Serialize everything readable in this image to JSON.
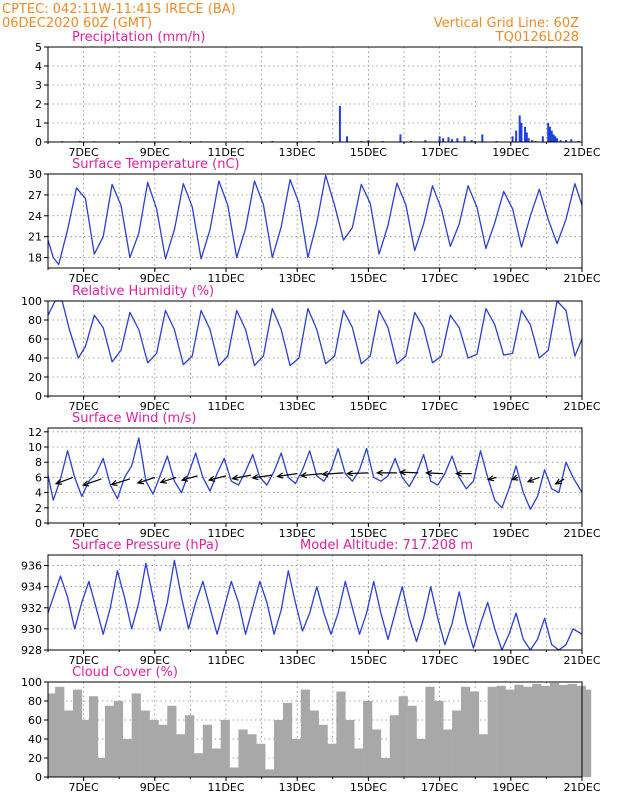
{
  "header": {
    "line1": "CPTEC:  042:11W-11:41S  IRECE (BA)",
    "line2": "06DEC2020 60Z (GMT)",
    "right1": "Vertical Grid Line: 60Z",
    "right2": "TQ0126L028"
  },
  "colors": {
    "line": "#2a3fd6",
    "bar": "#1f3fe0",
    "cloud": "#a8a8a8",
    "title": "#e020a0",
    "header": "#f08a24"
  },
  "x_axis": {
    "labels": [
      "7DEC",
      "9DEC",
      "11DEC",
      "13DEC",
      "15DEC",
      "17DEC",
      "19DEC",
      "21DEC"
    ],
    "x_range_days": [
      0,
      15
    ]
  },
  "chart_data": [
    {
      "id": "precip",
      "type": "bar",
      "title": "Precipitation (mm/h)",
      "ylim": [
        0,
        5
      ],
      "yticks": [
        0,
        1,
        2,
        3,
        4,
        5
      ],
      "x_days": [
        0.4,
        0.9,
        1.3,
        1.8,
        2.5,
        3.1,
        3.7,
        4.3,
        5.0,
        5.6,
        6.3,
        7.1,
        7.6,
        8.2,
        8.4,
        8.8,
        9.0,
        9.4,
        9.9,
        10.2,
        10.6,
        11.0,
        11.1,
        11.25,
        11.35,
        11.5,
        11.7,
        11.9,
        12.0,
        12.2,
        12.6,
        13.05,
        13.15,
        13.25,
        13.3,
        13.4,
        13.45,
        13.5,
        13.6,
        13.7,
        13.9,
        14.05,
        14.1,
        14.15,
        14.2,
        14.25,
        14.3,
        14.4,
        14.55,
        14.7,
        14.9
      ],
      "values": [
        0.05,
        0.05,
        0.04,
        0.03,
        0.04,
        0.03,
        0.05,
        0.04,
        0.03,
        0.04,
        0.05,
        0.04,
        0.05,
        1.9,
        0.3,
        0.05,
        0.1,
        0.05,
        0.4,
        0.05,
        0.1,
        0.3,
        0.2,
        0.25,
        0.15,
        0.2,
        0.3,
        0.1,
        0.05,
        0.4,
        0.05,
        0.3,
        0.6,
        1.4,
        1.0,
        0.8,
        0.5,
        0.2,
        0.1,
        0.05,
        0.3,
        1.0,
        0.8,
        0.6,
        0.4,
        0.3,
        0.2,
        0.1,
        0.1,
        0.15,
        0.05
      ]
    },
    {
      "id": "temp",
      "type": "line",
      "title": "Surface Temperature (nC)",
      "ylim": [
        16.5,
        30
      ],
      "yticks": [
        18,
        21,
        24,
        27,
        30
      ],
      "mean": 22.8,
      "amp": 5.6,
      "phase_offset": 0.28,
      "x": [
        0,
        0.15,
        0.3,
        0.55,
        0.8,
        1.05,
        1.3,
        1.55,
        1.8,
        2.05,
        2.3,
        2.55,
        2.8,
        3.05,
        3.3,
        3.55,
        3.8,
        4.05,
        4.3,
        4.55,
        4.8,
        5.05,
        5.3,
        5.55,
        5.8,
        6.05,
        6.3,
        6.55,
        6.8,
        7.05,
        7.3,
        7.55,
        7.8,
        8.05,
        8.3,
        8.55,
        8.8,
        9.05,
        9.3,
        9.55,
        9.8,
        10.05,
        10.3,
        10.55,
        10.8,
        11.05,
        11.3,
        11.55,
        11.8,
        12.05,
        12.3,
        12.55,
        12.8,
        13.05,
        13.3,
        13.55,
        13.8,
        14.05,
        14.3,
        14.55,
        14.8,
        15
      ],
      "values": [
        20.5,
        18.0,
        17.0,
        22.0,
        28.0,
        26.5,
        18.5,
        21.0,
        28.5,
        25.5,
        18.0,
        21.5,
        28.8,
        25.0,
        17.8,
        22.0,
        28.6,
        25.3,
        17.8,
        22.0,
        29.0,
        25.5,
        18.0,
        22.2,
        29.0,
        25.6,
        18.0,
        22.4,
        29.2,
        25.8,
        18.0,
        23.0,
        29.8,
        25.5,
        20.5,
        22.3,
        28.5,
        25.8,
        18.5,
        22.6,
        28.7,
        25.6,
        19.0,
        22.8,
        28.3,
        25.0,
        19.6,
        22.8,
        28.3,
        25.2,
        19.3,
        23.0,
        27.5,
        25.0,
        19.5,
        24.0,
        27.8,
        23.5,
        20.0,
        23.5,
        28.6,
        25.5
      ]
    },
    {
      "id": "rh",
      "type": "line",
      "title": "Relative Humidity (%)",
      "ylim": [
        0,
        100
      ],
      "yticks": [
        0,
        20,
        40,
        60,
        80,
        100
      ],
      "x": [
        0,
        0.2,
        0.4,
        0.6,
        0.85,
        1.05,
        1.3,
        1.55,
        1.8,
        2.05,
        2.3,
        2.55,
        2.8,
        3.05,
        3.3,
        3.55,
        3.8,
        4.05,
        4.3,
        4.55,
        4.8,
        5.05,
        5.3,
        5.55,
        5.8,
        6.05,
        6.3,
        6.55,
        6.8,
        7.05,
        7.3,
        7.55,
        7.8,
        8.05,
        8.3,
        8.55,
        8.8,
        9.05,
        9.3,
        9.55,
        9.8,
        10.05,
        10.3,
        10.55,
        10.8,
        11.05,
        11.3,
        11.55,
        11.8,
        12.05,
        12.3,
        12.55,
        12.8,
        13.05,
        13.3,
        13.55,
        13.8,
        14.05,
        14.3,
        14.55,
        14.8,
        15
      ],
      "values": [
        85,
        100,
        100,
        70,
        40,
        52,
        85,
        72,
        36,
        48,
        88,
        70,
        35,
        45,
        90,
        70,
        33,
        42,
        90,
        70,
        32,
        42,
        90,
        70,
        32,
        42,
        92,
        70,
        32,
        40,
        92,
        70,
        34,
        42,
        90,
        72,
        34,
        42,
        90,
        72,
        34,
        42,
        88,
        72,
        35,
        42,
        85,
        72,
        40,
        44,
        92,
        75,
        43,
        45,
        90,
        75,
        40,
        48,
        100,
        90,
        42,
        60
      ]
    },
    {
      "id": "wind",
      "type": "line",
      "title": "Surface Wind (m/s)",
      "ylim": [
        0,
        12.5
      ],
      "yticks": [
        0,
        2,
        4,
        6,
        8,
        10,
        12
      ],
      "x": [
        0,
        0.15,
        0.35,
        0.55,
        0.75,
        0.95,
        1.15,
        1.35,
        1.55,
        1.75,
        1.95,
        2.15,
        2.35,
        2.55,
        2.75,
        2.95,
        3.15,
        3.35,
        3.55,
        3.75,
        3.95,
        4.15,
        4.35,
        4.55,
        4.75,
        4.95,
        5.15,
        5.35,
        5.55,
        5.75,
        5.95,
        6.15,
        6.35,
        6.55,
        6.75,
        6.95,
        7.15,
        7.35,
        7.55,
        7.75,
        7.95,
        8.15,
        8.35,
        8.55,
        8.75,
        8.95,
        9.15,
        9.35,
        9.55,
        9.75,
        9.95,
        10.15,
        10.35,
        10.55,
        10.75,
        10.95,
        11.15,
        11.35,
        11.55,
        11.75,
        11.95,
        12.15,
        12.35,
        12.55,
        12.75,
        12.95,
        13.15,
        13.35,
        13.55,
        13.75,
        13.95,
        14.15,
        14.35,
        14.55,
        14.75,
        15
      ],
      "values": [
        6.3,
        3.0,
        5.8,
        9.5,
        6.0,
        3.5,
        5.5,
        6.5,
        8.5,
        5.0,
        3.2,
        6.0,
        7.5,
        11.2,
        5.5,
        3.8,
        6.2,
        8.8,
        5.5,
        4.0,
        6.5,
        9.2,
        6.0,
        4.2,
        6.5,
        8.5,
        5.5,
        5.0,
        6.8,
        9.0,
        6.0,
        5.0,
        6.8,
        9.2,
        6.0,
        5.2,
        7.0,
        9.5,
        6.2,
        5.5,
        7.0,
        9.8,
        6.5,
        5.5,
        7.0,
        9.8,
        6.0,
        5.5,
        6.2,
        8.5,
        6.0,
        4.8,
        6.5,
        9.0,
        5.5,
        5.0,
        6.5,
        8.8,
        6.0,
        4.5,
        5.5,
        9.5,
        6.0,
        3.0,
        2.0,
        4.5,
        7.5,
        4.0,
        1.8,
        3.5,
        7.0,
        4.5,
        4.0,
        8.0,
        6.0,
        4.0
      ],
      "arrows": {
        "x": [
          0.7,
          1.5,
          2.3,
          3.0,
          3.6,
          4.2,
          5.0,
          5.7,
          6.3,
          7.0,
          7.7,
          8.3,
          9.0,
          9.8,
          10.4,
          11.1,
          11.9,
          12.6,
          13.2,
          13.8,
          14.5
        ],
        "y": [
          6.0,
          5.8,
          5.8,
          6.0,
          6.0,
          6.2,
          6.2,
          6.3,
          6.3,
          6.5,
          6.5,
          6.6,
          6.6,
          6.6,
          6.6,
          6.5,
          6.5,
          6.0,
          6.0,
          6.0,
          5.8
        ],
        "dx": [
          -1.2,
          -1.3,
          -1.3,
          -1.2,
          -1.1,
          -1.1,
          -1.2,
          -1.3,
          -1.4,
          -1.4,
          -1.5,
          -1.5,
          -1.5,
          -1.4,
          -1.3,
          -1.2,
          -1.1,
          -0.6,
          -0.4,
          -0.8,
          -0.6
        ],
        "dy": [
          -0.45,
          -0.45,
          -0.4,
          -0.4,
          -0.35,
          -0.3,
          -0.3,
          -0.25,
          -0.2,
          -0.2,
          -0.15,
          -0.1,
          -0.05,
          0.0,
          0.05,
          0.05,
          0.0,
          -0.15,
          -0.15,
          -0.3,
          -0.35
        ]
      }
    },
    {
      "id": "pressure",
      "type": "line",
      "title": "Surface Pressure (hPa)",
      "subtitle": "Model Altitude: 717.208 m",
      "ylim": [
        928,
        937
      ],
      "yticks": [
        928,
        930,
        932,
        934,
        936
      ],
      "x": [
        0,
        0.15,
        0.35,
        0.55,
        0.75,
        0.95,
        1.15,
        1.35,
        1.55,
        1.75,
        1.95,
        2.15,
        2.35,
        2.55,
        2.75,
        2.95,
        3.15,
        3.35,
        3.55,
        3.75,
        3.95,
        4.15,
        4.35,
        4.55,
        4.75,
        4.95,
        5.15,
        5.35,
        5.55,
        5.75,
        5.95,
        6.15,
        6.35,
        6.55,
        6.75,
        6.95,
        7.15,
        7.35,
        7.55,
        7.75,
        7.95,
        8.15,
        8.35,
        8.55,
        8.75,
        8.95,
        9.15,
        9.35,
        9.55,
        9.75,
        9.95,
        10.15,
        10.35,
        10.55,
        10.75,
        10.95,
        11.15,
        11.35,
        11.55,
        11.75,
        11.95,
        12.15,
        12.35,
        12.55,
        12.75,
        12.95,
        13.15,
        13.35,
        13.55,
        13.75,
        13.95,
        14.15,
        14.35,
        14.55,
        14.75,
        15
      ],
      "values": [
        931.5,
        933.0,
        935.0,
        933.0,
        930.0,
        932.5,
        934.5,
        932.0,
        929.5,
        932.0,
        935.5,
        933.0,
        930.0,
        932.5,
        936.2,
        933.0,
        929.8,
        932.5,
        936.5,
        933.0,
        930.0,
        932.5,
        934.5,
        932.0,
        929.5,
        932.0,
        934.5,
        932.5,
        929.5,
        932.0,
        934.5,
        932.5,
        929.5,
        931.8,
        935.5,
        932.5,
        929.8,
        931.5,
        934.0,
        931.5,
        929.5,
        931.5,
        934.5,
        932.0,
        929.5,
        931.5,
        934.5,
        931.5,
        929.0,
        931.5,
        934.0,
        931.0,
        928.8,
        931.0,
        934.0,
        931.0,
        928.5,
        930.5,
        933.5,
        930.5,
        928.2,
        930.5,
        932.5,
        930.0,
        928.0,
        929.5,
        931.5,
        929.0,
        928.0,
        929.0,
        931.0,
        928.5,
        928.0,
        928.5,
        930.0,
        929.5
      ]
    },
    {
      "id": "cloud",
      "type": "bar",
      "title": "Cloud Cover (%)",
      "ylim": [
        0,
        100
      ],
      "yticks": [
        0,
        20,
        40,
        60,
        80,
        100
      ],
      "x": [
        0,
        0.2,
        0.45,
        0.7,
        0.95,
        1.15,
        1.4,
        1.6,
        1.85,
        2.1,
        2.35,
        2.6,
        2.85,
        3.1,
        3.35,
        3.6,
        3.85,
        4.1,
        4.35,
        4.6,
        4.85,
        5.1,
        5.35,
        5.6,
        5.85,
        6.1,
        6.35,
        6.6,
        6.85,
        7.1,
        7.35,
        7.6,
        7.85,
        8.1,
        8.35,
        8.6,
        8.85,
        9.1,
        9.35,
        9.6,
        9.85,
        10.1,
        10.35,
        10.6,
        10.85,
        11.1,
        11.35,
        11.6,
        11.85,
        12.1,
        12.35,
        12.6,
        12.85,
        13.1,
        13.35,
        13.6,
        13.85,
        14.1,
        14.35,
        14.6,
        14.85,
        15
      ],
      "values": [
        88,
        95,
        70,
        92,
        60,
        85,
        20,
        75,
        80,
        40,
        88,
        70,
        60,
        55,
        75,
        45,
        65,
        25,
        55,
        30,
        60,
        10,
        50,
        45,
        35,
        8,
        60,
        78,
        40,
        92,
        70,
        55,
        35,
        90,
        60,
        30,
        80,
        50,
        20,
        65,
        85,
        75,
        40,
        95,
        80,
        50,
        70,
        95,
        90,
        45,
        95,
        96,
        92,
        97,
        95,
        98,
        96,
        99,
        97,
        98,
        96,
        92
      ]
    }
  ]
}
